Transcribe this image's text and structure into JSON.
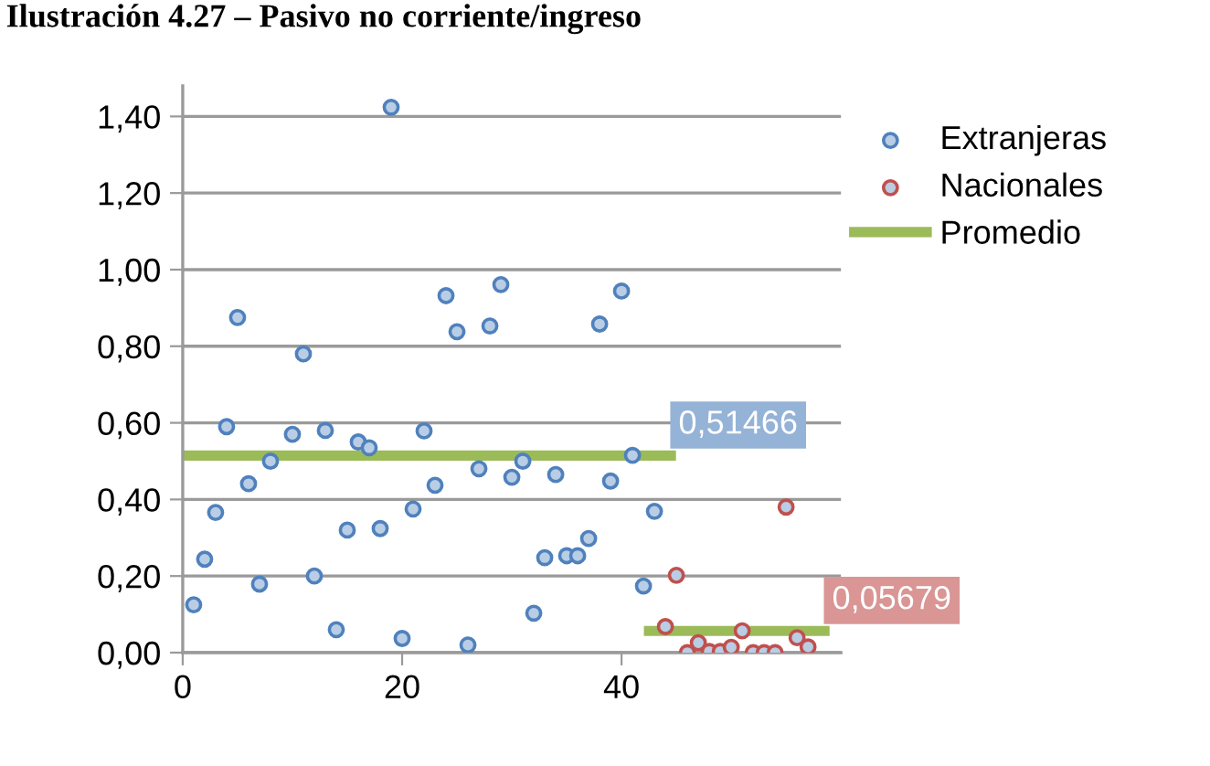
{
  "chart_data": {
    "type": "scatter",
    "title": "Ilustración 4.27 – Pasivo no corriente/ingreso",
    "xlim": [
      0,
      60
    ],
    "xticks": [
      0,
      20,
      40
    ],
    "ylim": [
      0,
      1.48
    ],
    "yticks": [
      {
        "value": 0,
        "label": "0,00"
      },
      {
        "value": 0.2,
        "label": "0,20"
      },
      {
        "value": 0.4,
        "label": "0,40"
      },
      {
        "value": 0.6,
        "label": "0,60"
      },
      {
        "value": 0.8,
        "label": "0,80"
      },
      {
        "value": 1.0,
        "label": "1,00"
      },
      {
        "value": 1.2,
        "label": "1,20"
      },
      {
        "value": 1.4,
        "label": "1,40"
      }
    ],
    "grid": "y",
    "legend": "right",
    "series": [
      {
        "name": "Extranjeras",
        "color": "#4f81bd",
        "marker": "circle",
        "x": [
          1,
          2,
          3,
          4,
          5,
          6,
          7,
          8,
          10,
          11,
          12,
          13,
          14,
          15,
          16,
          17,
          18,
          19,
          20,
          21,
          22,
          23,
          24,
          25,
          26,
          27,
          28,
          29,
          30,
          31,
          32,
          33,
          34,
          35,
          36,
          37,
          38,
          39,
          40,
          41,
          42,
          43
        ],
        "values": [
          0.125,
          0.244,
          0.366,
          0.59,
          0.875,
          0.441,
          0.179,
          0.5,
          0.57,
          0.78,
          0.2,
          0.58,
          0.06,
          0.32,
          0.55,
          0.535,
          0.324,
          1.424,
          0.037,
          0.375,
          0.579,
          0.437,
          0.932,
          0.838,
          0.02,
          0.48,
          0.853,
          0.961,
          0.458,
          0.5,
          0.103,
          0.248,
          0.465,
          0.253,
          0.253,
          0.298,
          0.858,
          0.448,
          0.944,
          0.515,
          0.174,
          0.369
        ]
      },
      {
        "name": "Nacionales",
        "color": "#c0504d",
        "marker": "circle",
        "x": [
          44,
          45,
          46,
          47,
          48,
          49,
          50,
          51,
          52,
          53,
          54,
          55,
          56,
          57
        ],
        "values": [
          0.068,
          0.202,
          0.0,
          0.026,
          0.003,
          0.003,
          0.014,
          0.057,
          0.0,
          0.0,
          0.0,
          0.38,
          0.039,
          0.015
        ]
      },
      {
        "name": "Promedio",
        "type": "line",
        "marker": "none",
        "color": "#9bbb59",
        "x": [
          0,
          44.5
        ],
        "values": [
          0.51466,
          0.51466
        ],
        "value_labels": [
          null,
          "0,51466"
        ]
      },
      {
        "type": "line",
        "marker": "none",
        "color": "#9bbb59",
        "x": [
          42.5,
          58.5
        ],
        "values": [
          0.05679,
          0.05679
        ],
        "value_labels": [
          null,
          "0,05679"
        ]
      }
    ]
  }
}
